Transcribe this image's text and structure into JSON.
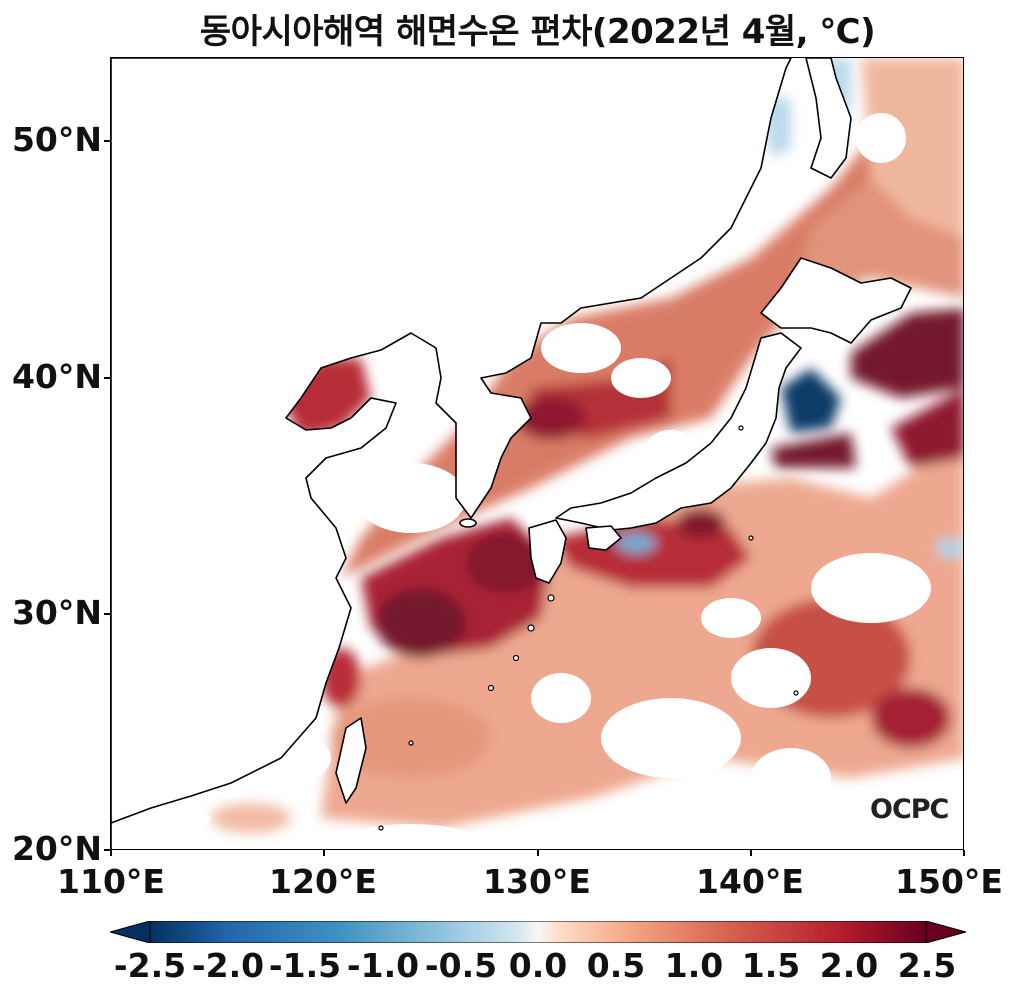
{
  "title": "동아시아해역 해면수온 편차(2022년 4월, ℃)",
  "logo_text": "OCPC",
  "latitude_labels": [
    "50°N",
    "40°N",
    "30°N",
    "20°N"
  ],
  "longitude_labels": [
    "110°E",
    "120°E",
    "130°E",
    "140°E",
    "150°E"
  ],
  "colorbar": {
    "labels": [
      "-2.5",
      "-2.0",
      "-1.5",
      "-1.0",
      "-0.5",
      "0.0",
      "0.5",
      "1.0",
      "1.5",
      "2.0",
      "2.5"
    ],
    "range": [
      -2.5,
      2.5
    ],
    "colormap": "RdBu_r",
    "extend": "both"
  },
  "colors": {
    "strong_warm": "#67001f",
    "warm": "#b2182b",
    "moderate_warm": "#d6604d",
    "weak_warm": "#f4a582",
    "neutral": "#f7f7f7",
    "weak_cool": "#92c5de",
    "strong_cool": "#053061",
    "coastline": "#000000"
  },
  "map_extent": {
    "lon": [
      110,
      150
    ],
    "lat": [
      20,
      53.5
    ]
  }
}
